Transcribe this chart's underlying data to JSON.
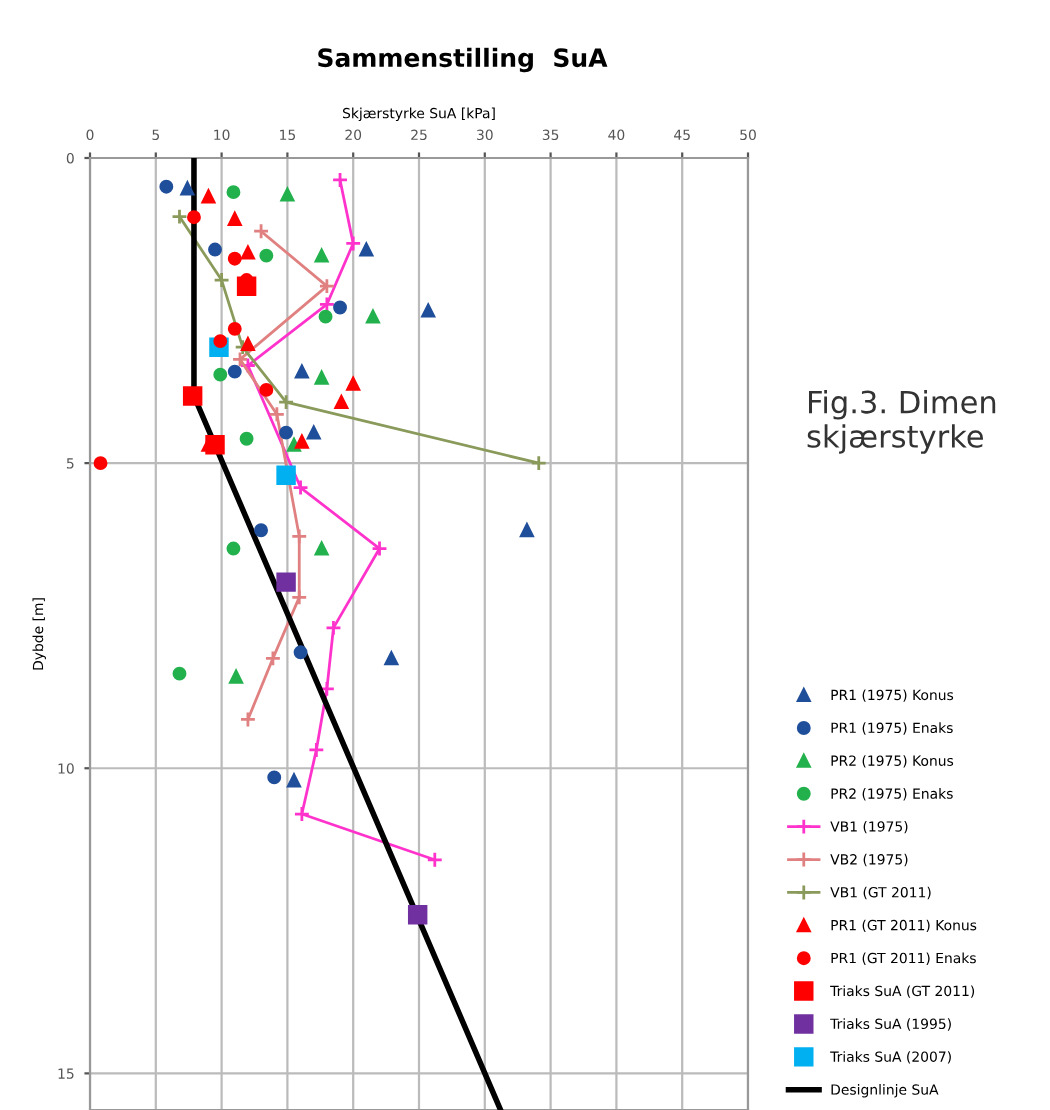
{
  "chart_data": {
    "type": "scatter",
    "title": "Sammenstilling  SuA",
    "xlabel": "Skjærstyrke SuA [kPa]",
    "ylabel": "Dybde [m]",
    "xlim": [
      0,
      50
    ],
    "xticks": [
      0,
      5,
      10,
      15,
      20,
      25,
      30,
      35,
      40,
      45,
      50
    ],
    "ylim": [
      15.6,
      0
    ],
    "yticks": [
      0,
      5,
      10,
      15
    ],
    "grid": true,
    "legend": "right",
    "annotations": [
      "Fig.3. Dimen\nskjærstyrke"
    ],
    "series": [
      {
        "name": "PR1 (1975) Konus",
        "marker": "triangle",
        "color": "#1f4e9a",
        "x": [
          7.4,
          21.0,
          25.7,
          16.1,
          17.0,
          33.2,
          22.9,
          15.5
        ],
        "values": [
          0.5,
          1.5,
          2.5,
          3.5,
          4.5,
          6.1,
          8.2,
          10.2
        ]
      },
      {
        "name": "PR1 (1975) Enaks",
        "marker": "circle",
        "color": "#1f4e9a",
        "x": [
          5.8,
          9.5,
          19.0,
          11.0,
          14.9,
          13.0,
          16.0,
          14.0
        ],
        "values": [
          0.47,
          1.5,
          2.45,
          3.5,
          4.5,
          6.1,
          8.1,
          10.15
        ]
      },
      {
        "name": "PR2 (1975) Konus",
        "marker": "triangle",
        "color": "#22b14c",
        "x": [
          15.0,
          17.6,
          21.5,
          17.6,
          15.5,
          17.6,
          11.1
        ],
        "values": [
          0.6,
          1.6,
          2.6,
          3.6,
          4.7,
          6.4,
          8.5
        ]
      },
      {
        "name": "PR2 (1975) Enaks",
        "marker": "circle",
        "color": "#22b14c",
        "x": [
          10.9,
          13.4,
          17.9,
          9.9,
          11.9,
          10.9,
          6.8
        ],
        "values": [
          0.56,
          1.6,
          2.6,
          3.55,
          4.6,
          6.4,
          8.45
        ]
      },
      {
        "name": "VB1 (1975)",
        "type": "line",
        "marker": "cross",
        "color": "#ff33cc",
        "x": [
          19.0,
          20.0,
          18.0,
          12.0,
          16.0,
          22.0,
          18.5,
          18.0,
          17.2,
          16.1,
          26.2
        ],
        "values": [
          0.36,
          1.4,
          2.4,
          3.4,
          5.4,
          6.4,
          7.7,
          8.7,
          9.7,
          10.75,
          11.5
        ]
      },
      {
        "name": "VB2 (1975)",
        "type": "line",
        "marker": "cross",
        "color": "#e08080",
        "x": [
          13.0,
          18.0,
          11.4,
          14.2,
          15.9,
          15.9,
          13.9,
          12.0
        ],
        "values": [
          1.2,
          2.1,
          3.3,
          4.2,
          6.2,
          7.2,
          8.2,
          9.2
        ]
      },
      {
        "name": "VB1 (GT 2011)",
        "type": "line",
        "marker": "cross",
        "color": "#8a9a5b",
        "x": [
          6.8,
          10.0,
          11.6,
          14.9,
          34.1
        ],
        "values": [
          0.96,
          2.0,
          3.1,
          4.0,
          5.0
        ]
      },
      {
        "name": "PR1 (GT 2011) Konus",
        "marker": "triangle",
        "color": "#ff0000",
        "x": [
          9.0,
          11.0,
          12.0,
          12.0,
          20.0,
          19.1,
          16.1,
          9.0
        ],
        "values": [
          0.63,
          1.0,
          1.55,
          3.05,
          3.7,
          4.0,
          4.65,
          4.7
        ]
      },
      {
        "name": "PR1 (GT 2011) Enaks",
        "marker": "circle",
        "color": "#ff0000",
        "x": [
          7.9,
          11.0,
          11.9,
          11.0,
          9.9,
          13.4,
          0.8
        ],
        "values": [
          0.97,
          1.65,
          2.0,
          2.8,
          3.0,
          3.8,
          5.0
        ]
      },
      {
        "name": "Triaks SuA (GT 2011)",
        "marker": "square",
        "color": "#ff0000",
        "x": [
          11.9,
          7.8,
          9.5
        ],
        "values": [
          2.1,
          3.9,
          4.7
        ]
      },
      {
        "name": "Triaks SuA (1995)",
        "marker": "square",
        "color": "#7030a0",
        "x": [
          14.9,
          24.9
        ],
        "values": [
          6.95,
          12.4
        ]
      },
      {
        "name": "Triaks SuA (2007)",
        "marker": "square",
        "color": "#00b0f0",
        "x": [
          9.8,
          14.9
        ],
        "values": [
          3.1,
          5.2
        ]
      },
      {
        "name": "Designlinje SuA",
        "type": "line",
        "marker": "none",
        "color": "#000000",
        "x": [
          7.9,
          7.9,
          31.2
        ],
        "values": [
          0,
          3.9,
          15.6
        ]
      }
    ]
  }
}
